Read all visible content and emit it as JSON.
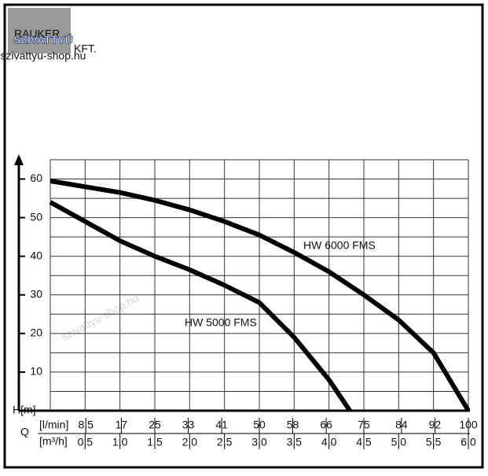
{
  "logo": {
    "brand": "SZIVATTYÚ",
    "company": "RAUKER",
    "suffix": "KFT.",
    "site": "szivattyu-shop.hu"
  },
  "watermark": "szivattyu-shop.hu",
  "chart_data": {
    "type": "line",
    "ylabel": "H[m]",
    "xlabel": "Q",
    "x2unit": "[l/min]",
    "xunit": "[m³/h]",
    "xlim": [
      0,
      6
    ],
    "ylim": [
      0,
      65
    ],
    "x2lim": [
      0,
      100
    ],
    "yticks": [
      10,
      20,
      30,
      40,
      50,
      60
    ],
    "ygrid": [
      5,
      10,
      15,
      20,
      25,
      30,
      35,
      40,
      45,
      50,
      55,
      60,
      65
    ],
    "xticks": [
      {
        "value": 0.5,
        "label": "0,5"
      },
      {
        "value": 1.0,
        "label": "1,0"
      },
      {
        "value": 1.5,
        "label": "1,5"
      },
      {
        "value": 2.0,
        "label": "2,0"
      },
      {
        "value": 2.5,
        "label": "2,5"
      },
      {
        "value": 3.0,
        "label": "3,0"
      },
      {
        "value": 3.5,
        "label": "3,5"
      },
      {
        "value": 4.0,
        "label": "4,0"
      },
      {
        "value": 4.5,
        "label": "4,5"
      },
      {
        "value": 5.0,
        "label": "5,0"
      },
      {
        "value": 5.5,
        "label": "5,5"
      },
      {
        "value": 6.0,
        "label": "6,0"
      }
    ],
    "x2ticks": [
      {
        "value": 8.5,
        "label": "8,5"
      },
      17,
      25,
      33,
      41,
      50,
      58,
      66,
      75,
      84,
      92,
      100
    ],
    "grid": true,
    "series": [
      {
        "name": "HW 6000 FMS",
        "color": "#000000",
        "x": [
          0,
          0.5,
          1,
          1.5,
          2,
          2.5,
          3,
          3.5,
          4,
          4.5,
          5,
          5.5,
          6
        ],
        "values": [
          59.5,
          58,
          56.5,
          54.5,
          52,
          49,
          45.5,
          41,
          36,
          30,
          23.5,
          15,
          0
        ]
      },
      {
        "name": "HW 5000 FMS",
        "color": "#000000",
        "x": [
          0,
          0.5,
          1,
          1.5,
          2,
          2.5,
          3,
          3.5,
          4,
          4.3
        ],
        "values": [
          54,
          49,
          44,
          40,
          36.5,
          32.5,
          28,
          19,
          8,
          0
        ]
      }
    ]
  }
}
